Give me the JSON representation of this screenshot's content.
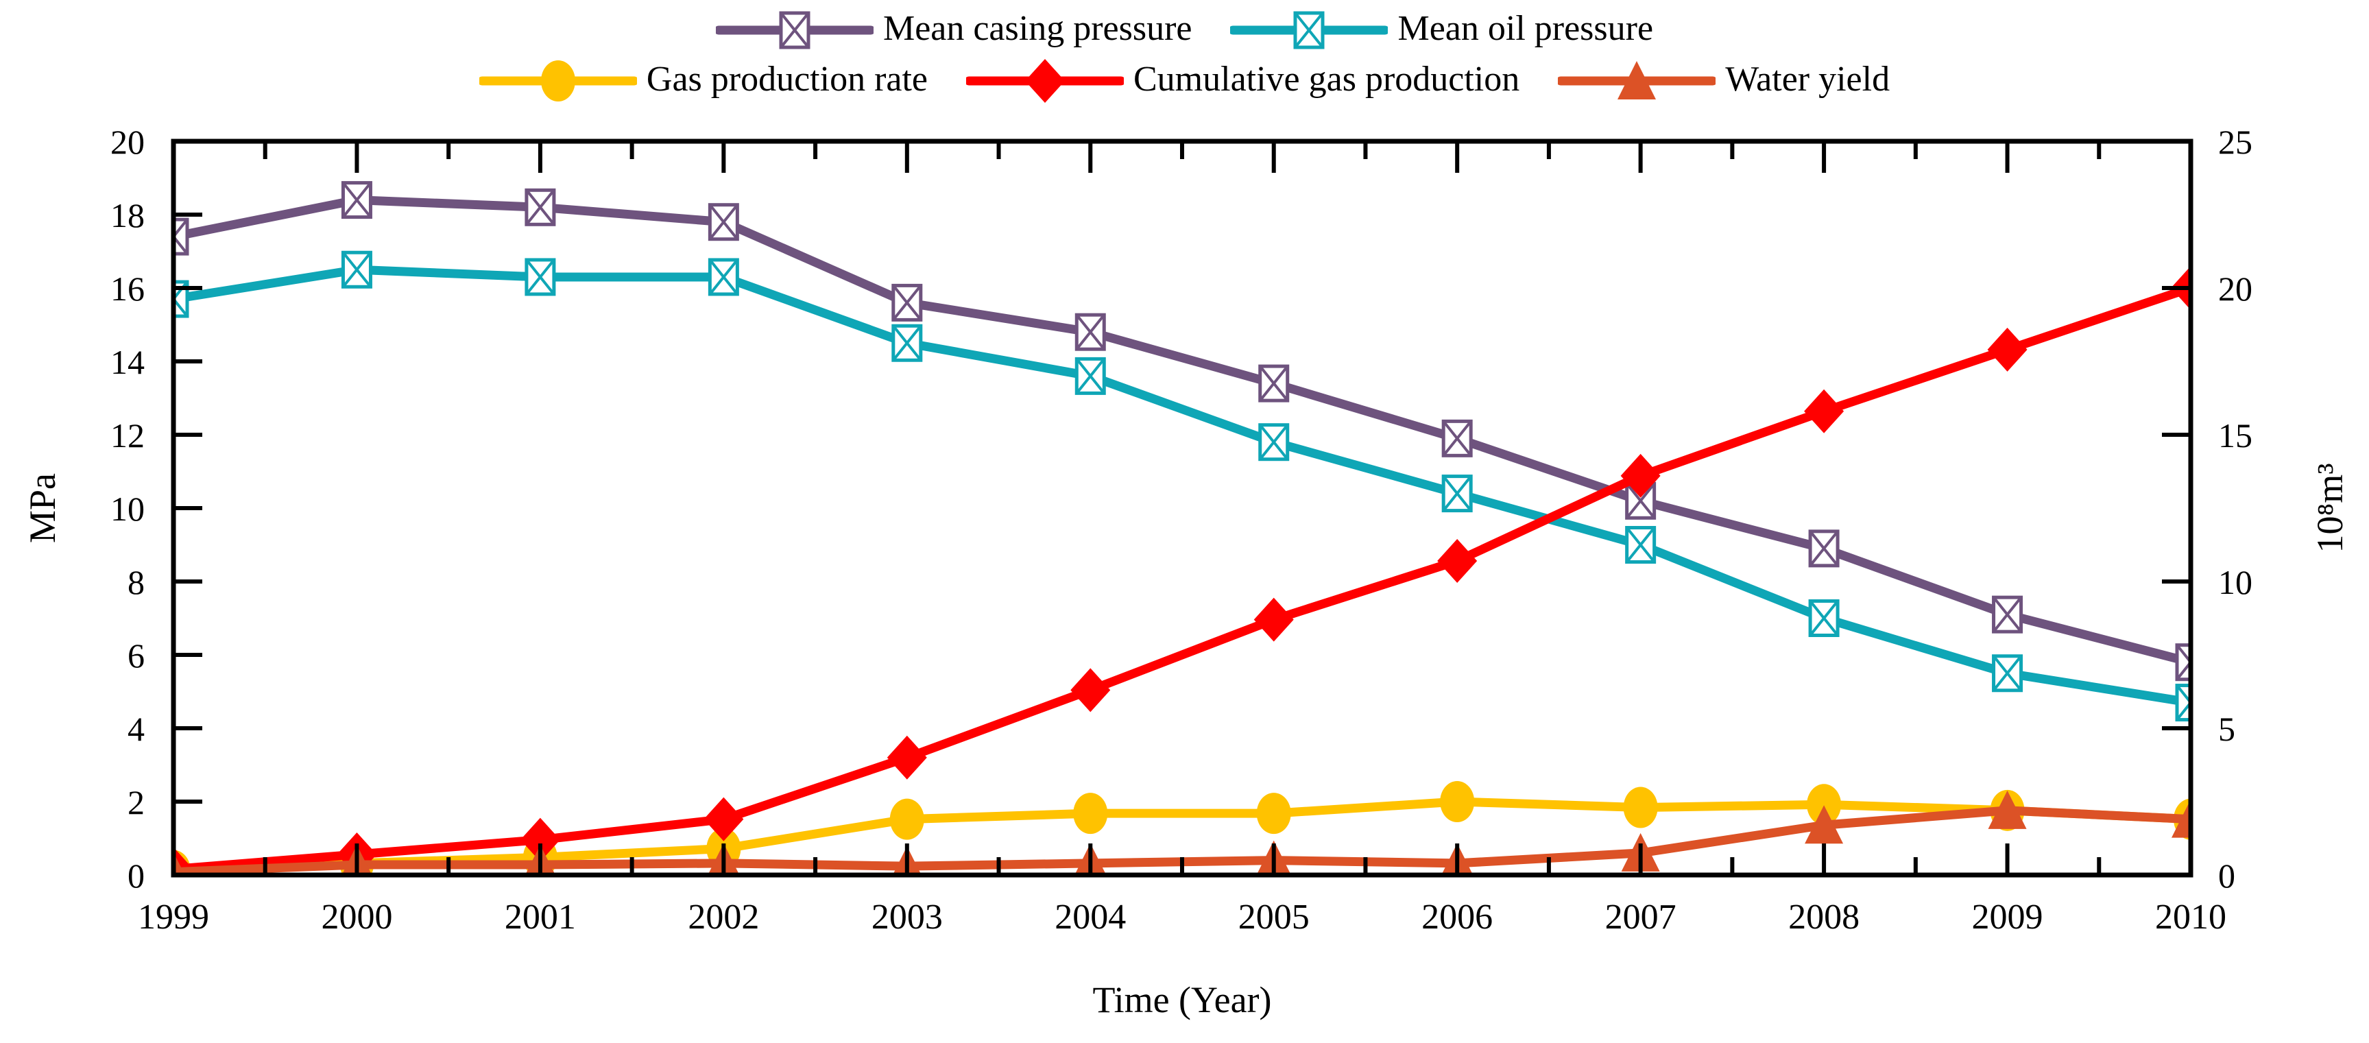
{
  "figure_title": "",
  "axes": {
    "x_title": "Time (Year)",
    "left_title": "MPa",
    "right_title": "10⁸m³"
  },
  "chart_data": {
    "type": "line",
    "title": "",
    "xlabel": "Time (Year)",
    "x": [
      1999,
      2000,
      2001,
      2002,
      2003,
      2004,
      2005,
      2006,
      2007,
      2008,
      2009,
      2010
    ],
    "x_minor_tick_step": 0.5,
    "grid": "off",
    "legend_position": "top-center-two-rows",
    "left_axis": {
      "label": "MPa",
      "min": 0,
      "max": 20,
      "tick_step": 2
    },
    "right_axis": {
      "label": "10⁸m³",
      "min": 0,
      "max": 25,
      "tick_step": 5
    },
    "frame_color": "#000000",
    "series": [
      {
        "name": "Mean casing pressure",
        "axis": "left",
        "units": "MPa",
        "color": "#6E537E",
        "marker": "crossed-square",
        "values": [
          17.4,
          18.4,
          18.2,
          17.8,
          15.6,
          14.8,
          13.4,
          11.9,
          10.2,
          8.9,
          7.1,
          5.8
        ]
      },
      {
        "name": "Mean oil pressure",
        "axis": "left",
        "units": "MPa",
        "color": "#0FA6B6",
        "marker": "crossed-square",
        "values": [
          15.7,
          16.5,
          16.3,
          16.3,
          14.5,
          13.6,
          11.8,
          10.4,
          9.0,
          7.0,
          5.5,
          4.7
        ]
      },
      {
        "name": "Gas production rate",
        "axis": "right",
        "units": "10⁸m³",
        "color": "#FFC200",
        "marker": "circle",
        "values": [
          0.15,
          0.4,
          0.6,
          0.9,
          1.9,
          2.1,
          2.1,
          2.5,
          2.3,
          2.4,
          2.2,
          1.9
        ]
      },
      {
        "name": "Cumulative gas production",
        "axis": "right",
        "units": "10⁸m³",
        "color": "#FF0000",
        "marker": "diamond",
        "values": [
          0.2,
          0.7,
          1.2,
          1.9,
          4.0,
          6.3,
          8.7,
          10.7,
          13.6,
          15.8,
          17.9,
          20.0
        ]
      },
      {
        "name": "Water yield",
        "axis": "right",
        "units": "10⁸m³",
        "color": "#DC5226",
        "marker": "triangle",
        "values": [
          0.1,
          0.35,
          0.35,
          0.4,
          0.3,
          0.4,
          0.5,
          0.4,
          0.75,
          1.7,
          2.2,
          1.9
        ]
      }
    ],
    "legend_rows": [
      [
        0,
        1
      ],
      [
        2,
        3,
        4
      ]
    ]
  }
}
